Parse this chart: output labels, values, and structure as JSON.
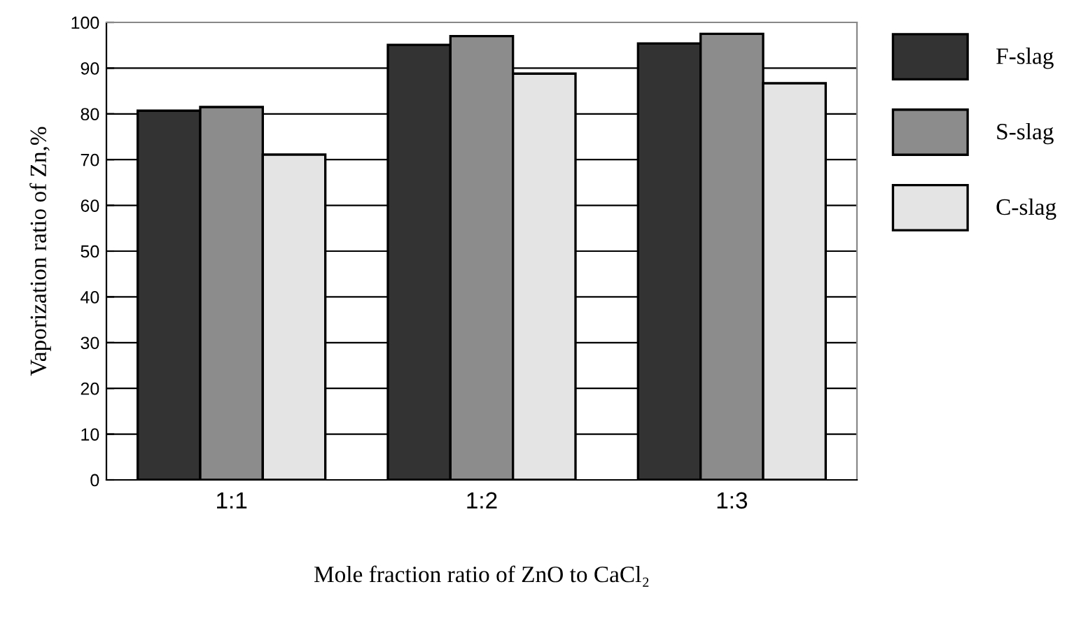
{
  "chart_data": {
    "type": "bar",
    "xlabel": "Mole fraction ratio of ZnO to CaCl₂",
    "ylabel": "Vaporization ratio of Zn,%",
    "categories": [
      "1:1",
      "1:2",
      "1:3"
    ],
    "series": [
      {
        "name": "F-slag",
        "color": "#333333",
        "values": [
          80.7,
          95.1,
          95.4
        ]
      },
      {
        "name": "S-slag",
        "color": "#8c8c8c",
        "values": [
          81.5,
          97.0,
          97.5
        ]
      },
      {
        "name": "C-slag",
        "color": "#e4e4e4",
        "values": [
          71.1,
          88.8,
          86.7
        ]
      }
    ],
    "ylim": [
      0,
      100
    ],
    "yticks": [
      0,
      10,
      20,
      30,
      40,
      50,
      60,
      70,
      80,
      90,
      100
    ],
    "grid": "y",
    "legend": "right"
  }
}
